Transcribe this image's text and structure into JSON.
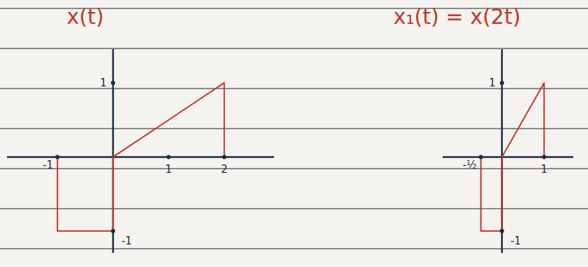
{
  "chart_data": [
    {
      "type": "line",
      "title": "x(t)",
      "x": [
        -1,
        -1,
        0,
        0,
        2,
        2
      ],
      "values": [
        0,
        -1,
        -1,
        0,
        1,
        0
      ],
      "color": "#c0392b",
      "xlim": [
        -1.9,
        2.9
      ],
      "ylim": [
        -1.3,
        1.45
      ],
      "xticks": [
        -1,
        1,
        2
      ],
      "yticks": [
        1,
        -1
      ]
    },
    {
      "type": "line",
      "title": "x₁(t) = x(2t)",
      "x": [
        -0.5,
        -0.5,
        0,
        0,
        1,
        1
      ],
      "values": [
        0,
        -1,
        -1,
        0,
        1,
        0
      ],
      "color": "#c0392b",
      "xlim": [
        -1.4,
        1.7
      ],
      "ylim": [
        -1.3,
        1.45
      ],
      "xticks": [
        {
          "value": -0.5,
          "label": "-½"
        },
        1
      ],
      "yticks": [
        1,
        -1
      ]
    }
  ]
}
